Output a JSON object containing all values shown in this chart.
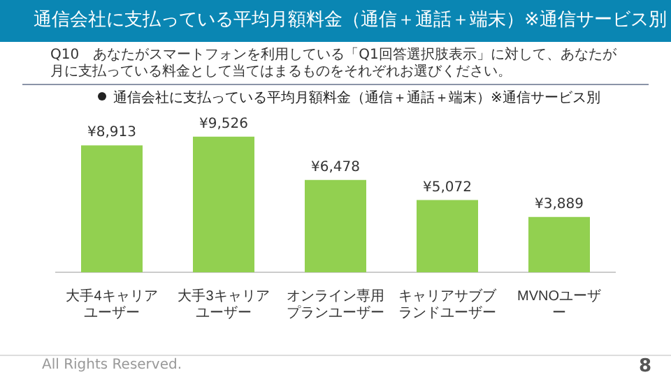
{
  "chart_data": {
    "type": "bar",
    "title": "通信会社に支払っている平均月額料金（通信＋通話＋端末）※通信サービス別",
    "subtitle": "Q10　あなたがスマートフォンを利用している「Q1回答選択肢表示」に対して、あなたが月に支払っている料金として当てはまるものをそれぞれお選びください。",
    "legend_title": "通信会社に支払っている平均月額料金（通信＋通話＋端末）※通信サービス別",
    "categories": [
      "大手4キャリアユーザー",
      "大手3キャリアユーザー",
      "オンライン専用プランユーザー",
      "キャリアサブブランドユーザー",
      "MVNOユーザー"
    ],
    "values": [
      8913,
      9526,
      6478,
      5072,
      3889
    ],
    "value_labels": [
      "¥8,913",
      "¥9,526",
      "¥6,478",
      "¥5,072",
      "¥3,889"
    ],
    "color": "#92d050",
    "annotations": [
      "All Rights Reserved.",
      "8"
    ]
  }
}
